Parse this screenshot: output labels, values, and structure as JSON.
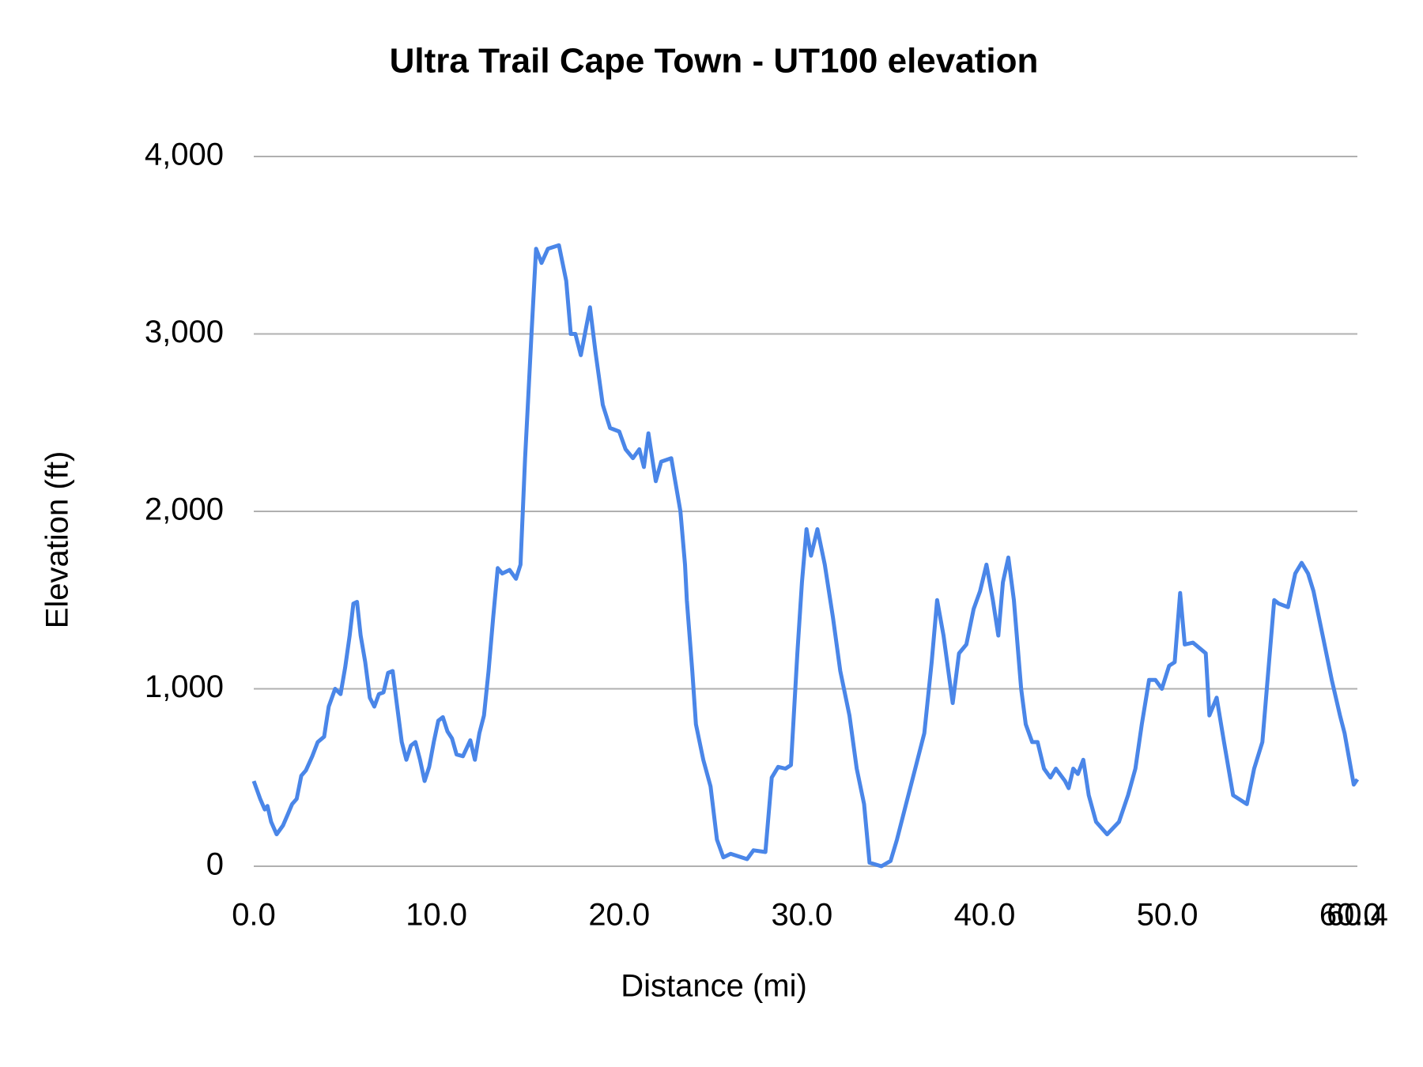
{
  "chart_data": {
    "type": "line",
    "title": "Ultra Trail Cape Town - UT100 elevation",
    "x_label": "Distance (mi)",
    "y_label": "Elevation (ft)",
    "xlim": [
      0,
      60.4
    ],
    "xticks": [
      {
        "value": 0,
        "label": "0.0"
      },
      {
        "value": 10,
        "label": "10.0"
      },
      {
        "value": 20,
        "label": "20.0"
      },
      {
        "value": 30,
        "label": "30.0"
      },
      {
        "value": 40,
        "label": "40.0"
      },
      {
        "value": 50,
        "label": "50.0"
      },
      {
        "value": 60,
        "label": "60.0"
      },
      {
        "value": 60.4,
        "label": "60.4"
      }
    ],
    "ylim": [
      0,
      4000
    ],
    "yticks": [
      0,
      {
        "value": 1000,
        "label": "1,000"
      },
      {
        "value": 2000,
        "label": "2,000"
      },
      {
        "value": 3000,
        "label": "3,000"
      },
      {
        "value": 4000,
        "label": "4,000"
      }
    ],
    "grid": true,
    "color": "#4a86e8",
    "x": [
      0,
      0.35,
      0.6,
      0.75,
      0.95,
      1.25,
      1.6,
      1.85,
      2.1,
      2.35,
      2.6,
      2.85,
      3.2,
      3.5,
      3.85,
      4.1,
      4.45,
      4.75,
      5.0,
      5.25,
      5.45,
      5.65,
      5.85,
      6.1,
      6.35,
      6.6,
      6.85,
      7.1,
      7.35,
      7.6,
      7.85,
      8.1,
      8.35,
      8.6,
      8.85,
      9.1,
      9.35,
      9.6,
      9.85,
      10.1,
      10.35,
      10.6,
      10.85,
      11.1,
      11.45,
      11.85,
      12.1,
      12.35,
      12.6,
      12.85,
      13.1,
      13.35,
      13.6,
      14.0,
      14.35,
      14.6,
      14.85,
      15.0,
      15.2,
      15.45,
      15.75,
      16.1,
      16.7,
      17.1,
      17.35,
      17.6,
      17.9,
      18.4,
      18.7,
      19.1,
      19.5,
      20.0,
      20.35,
      20.75,
      21.1,
      21.35,
      21.6,
      22.0,
      22.3,
      22.85,
      23.35,
      23.6,
      23.7,
      24.0,
      24.2,
      24.6,
      25.0,
      25.35,
      25.7,
      26.1,
      27.0,
      27.35,
      28.0,
      28.35,
      28.7,
      29.1,
      29.4,
      29.75,
      30.0,
      30.25,
      30.5,
      30.85,
      31.25,
      31.7,
      32.1,
      32.6,
      33.0,
      33.4,
      33.7,
      34.35,
      34.85,
      35.2,
      35.7,
      36.2,
      36.7,
      37.1,
      37.4,
      37.75,
      38.25,
      38.6,
      39.0,
      39.4,
      39.75,
      40.1,
      40.45,
      40.75,
      41.0,
      41.3,
      41.6,
      42.0,
      42.25,
      42.6,
      42.9,
      43.25,
      43.6,
      43.9,
      44.4,
      44.6,
      44.85,
      45.1,
      45.4,
      45.7,
      46.1,
      46.7,
      47.35,
      47.85,
      48.25,
      48.6,
      49.0,
      49.35,
      49.7,
      50.1,
      50.4,
      50.7,
      50.95,
      51.4,
      52.1,
      52.3,
      52.7,
      53.1,
      53.6,
      54.35,
      54.75,
      55.2,
      55.85,
      56.1,
      56.6,
      57.0,
      57.35,
      57.7,
      58.0,
      58.5,
      59.0,
      59.45,
      59.7,
      60.2,
      60.4
    ],
    "values": [
      480,
      380,
      320,
      340,
      250,
      180,
      230,
      290,
      350,
      380,
      510,
      540,
      620,
      700,
      730,
      900,
      1000,
      970,
      1120,
      1300,
      1480,
      1490,
      1300,
      1150,
      950,
      900,
      970,
      980,
      1090,
      1100,
      900,
      700,
      600,
      680,
      700,
      600,
      480,
      560,
      700,
      820,
      840,
      760,
      720,
      630,
      620,
      710,
      600,
      750,
      850,
      1100,
      1400,
      1680,
      1650,
      1670,
      1620,
      1700,
      2300,
      2600,
      3000,
      3480,
      3400,
      3480,
      3500,
      3300,
      3000,
      3000,
      2880,
      3150,
      2900,
      2600,
      2470,
      2450,
      2350,
      2300,
      2350,
      2250,
      2440,
      2170,
      2280,
      2300,
      2000,
      1700,
      1500,
      1100,
      800,
      600,
      450,
      150,
      50,
      70,
      40,
      90,
      80,
      500,
      560,
      550,
      570,
      1200,
      1600,
      1900,
      1750,
      1900,
      1700,
      1400,
      1100,
      850,
      550,
      350,
      20,
      0,
      30,
      150,
      350,
      550,
      750,
      1150,
      1500,
      1300,
      920,
      1200,
      1250,
      1450,
      1550,
      1700,
      1500,
      1300,
      1600,
      1740,
      1500,
      1000,
      800,
      700,
      700,
      550,
      500,
      550,
      480,
      440,
      550,
      520,
      600,
      400,
      250,
      180,
      250,
      400,
      550,
      800,
      1050,
      1050,
      1000,
      1130,
      1150,
      1540,
      1250,
      1260,
      1200,
      850,
      950,
      700,
      400,
      350,
      550,
      700,
      1500,
      1480,
      1460,
      1650,
      1710,
      1650,
      1550,
      1300,
      1050,
      850,
      750,
      460,
      490
    ]
  }
}
